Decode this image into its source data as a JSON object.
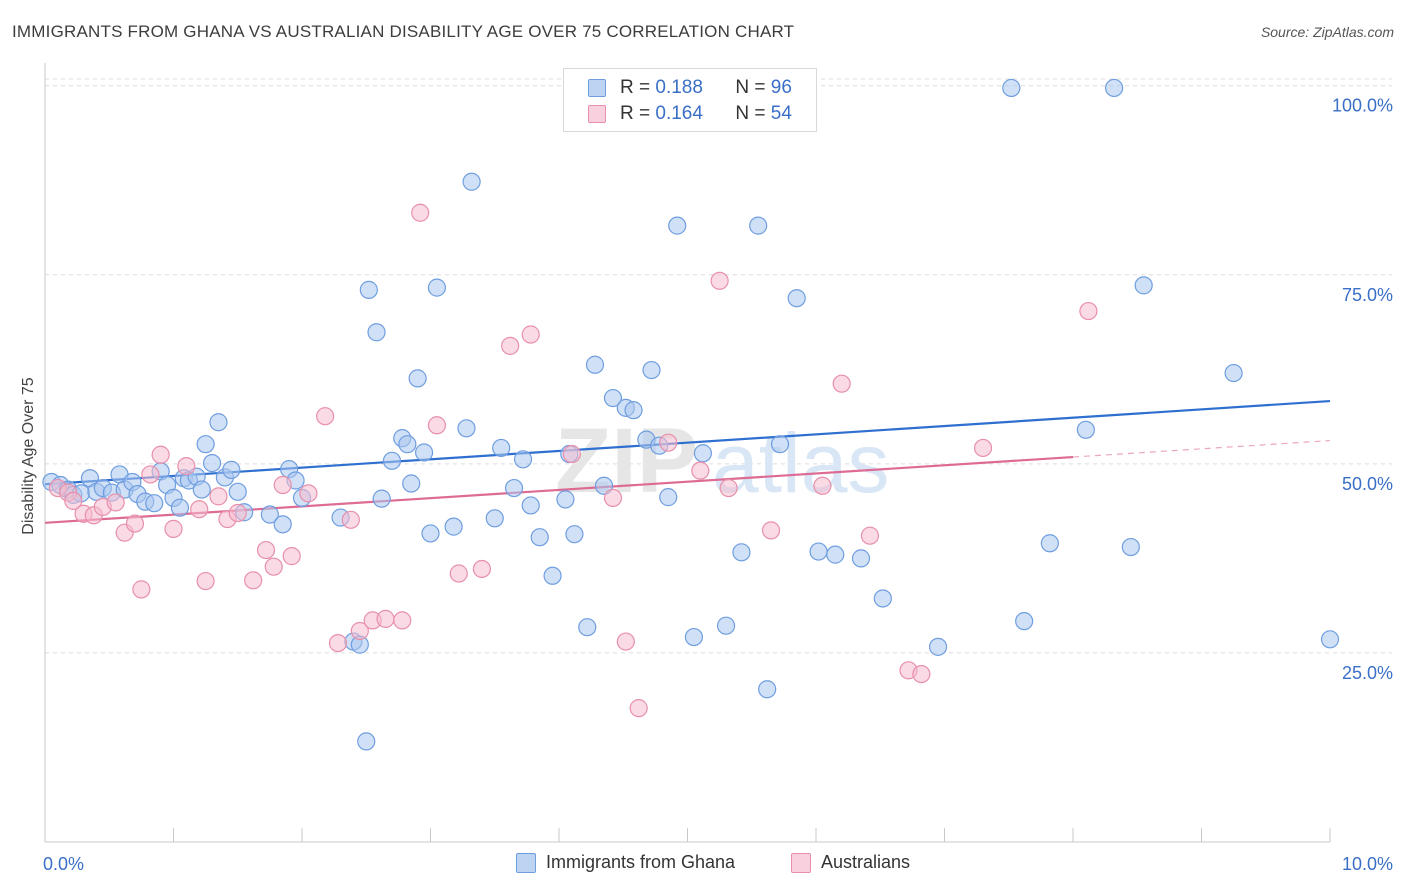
{
  "title": "IMMIGRANTS FROM GHANA VS AUSTRALIAN DISABILITY AGE OVER 75 CORRELATION CHART",
  "source": "Source: ZipAtlas.com",
  "watermark": {
    "zip": "ZIP",
    "atlas": "atlas"
  },
  "colors": {
    "blue_fill": "#a9c7ee",
    "blue_stroke": "#6f9ee0",
    "blue_line": "#2f6fd0",
    "pink_fill": "#f6bccd",
    "pink_stroke": "#e890ab",
    "pink_line": "#dd6b93",
    "axis_label": "#3a6fc7",
    "grid": "#dcdcdc"
  },
  "legend": {
    "rows": [
      {
        "r_label": "R = ",
        "r_value": "0.188",
        "n_label": "N = ",
        "n_value": "96"
      },
      {
        "r_label": "R = ",
        "r_value": "0.164",
        "n_label": "N = ",
        "n_value": "54"
      }
    ]
  },
  "bottom_legend": [
    "Immigrants from Ghana",
    "Australians"
  ],
  "chart_data": {
    "type": "scatter",
    "title": "IMMIGRANTS FROM GHANA VS AUSTRALIAN DISABILITY AGE OVER 75 CORRELATION CHART",
    "xlabel": "",
    "ylabel": "Disability Age Over 75",
    "xlim": [
      0,
      10
    ],
    "ylim": [
      0,
      103
    ],
    "x_tick_labels": [
      {
        "value": 0,
        "label": "0.0%"
      },
      {
        "value": 10,
        "label": "10.0%"
      }
    ],
    "y_tick_labels": [
      {
        "value": 25,
        "label": "25.0%"
      },
      {
        "value": 50,
        "label": "50.0%"
      },
      {
        "value": 75,
        "label": "75.0%"
      },
      {
        "value": 100,
        "label": "100.0%"
      }
    ],
    "grid": true,
    "legend_position": "top-center",
    "series": [
      {
        "name": "Immigrants from Ghana",
        "color": "#6f9ee0",
        "trendline": {
          "x": [
            0,
            10
          ],
          "y": [
            47.3,
            58.3
          ]
        },
        "points": [
          [
            0.05,
            47.6
          ],
          [
            0.12,
            47.2
          ],
          [
            0.18,
            46.6
          ],
          [
            0.22,
            45.9
          ],
          [
            0.28,
            46.1
          ],
          [
            0.35,
            48.1
          ],
          [
            0.4,
            46.3
          ],
          [
            0.45,
            46.8
          ],
          [
            0.52,
            46.2
          ],
          [
            0.58,
            48.6
          ],
          [
            0.62,
            46.6
          ],
          [
            0.68,
            47.6
          ],
          [
            0.72,
            46.0
          ],
          [
            0.78,
            45.0
          ],
          [
            0.85,
            44.8
          ],
          [
            0.9,
            49.0
          ],
          [
            0.95,
            47.2
          ],
          [
            1.0,
            45.5
          ],
          [
            1.05,
            44.2
          ],
          [
            1.08,
            48.1
          ],
          [
            1.12,
            47.8
          ],
          [
            1.18,
            48.3
          ],
          [
            1.22,
            46.6
          ],
          [
            1.25,
            52.6
          ],
          [
            1.3,
            50.1
          ],
          [
            1.35,
            55.5
          ],
          [
            1.4,
            48.2
          ],
          [
            1.45,
            49.2
          ],
          [
            1.5,
            46.3
          ],
          [
            1.55,
            43.6
          ],
          [
            1.75,
            43.3
          ],
          [
            1.85,
            42.0
          ],
          [
            1.9,
            49.3
          ],
          [
            1.95,
            47.8
          ],
          [
            2.0,
            45.5
          ],
          [
            2.3,
            42.9
          ],
          [
            2.4,
            26.5
          ],
          [
            2.45,
            26.1
          ],
          [
            2.5,
            13.3
          ],
          [
            2.52,
            73.0
          ],
          [
            2.58,
            67.4
          ],
          [
            2.62,
            45.4
          ],
          [
            2.7,
            50.4
          ],
          [
            2.78,
            53.4
          ],
          [
            2.82,
            52.6
          ],
          [
            2.85,
            47.4
          ],
          [
            2.9,
            61.3
          ],
          [
            2.95,
            51.5
          ],
          [
            3.0,
            40.8
          ],
          [
            3.05,
            73.3
          ],
          [
            3.18,
            41.7
          ],
          [
            3.28,
            54.7
          ],
          [
            3.32,
            87.3
          ],
          [
            3.5,
            42.8
          ],
          [
            3.55,
            52.1
          ],
          [
            3.65,
            46.8
          ],
          [
            3.72,
            50.6
          ],
          [
            3.78,
            44.5
          ],
          [
            3.85,
            40.3
          ],
          [
            3.95,
            35.2
          ],
          [
            4.05,
            45.3
          ],
          [
            4.08,
            51.3
          ],
          [
            4.12,
            40.7
          ],
          [
            4.22,
            28.4
          ],
          [
            4.28,
            63.1
          ],
          [
            4.35,
            47.1
          ],
          [
            4.42,
            58.7
          ],
          [
            4.52,
            57.4
          ],
          [
            4.58,
            57.1
          ],
          [
            4.68,
            53.2
          ],
          [
            4.72,
            62.4
          ],
          [
            4.78,
            52.4
          ],
          [
            4.85,
            45.6
          ],
          [
            4.92,
            81.5
          ],
          [
            5.05,
            27.1
          ],
          [
            5.12,
            51.4
          ],
          [
            5.3,
            28.6
          ],
          [
            5.42,
            38.3
          ],
          [
            5.55,
            81.5
          ],
          [
            5.62,
            20.2
          ],
          [
            5.72,
            52.6
          ],
          [
            5.85,
            71.9
          ],
          [
            6.02,
            38.4
          ],
          [
            6.15,
            38.0
          ],
          [
            6.35,
            37.5
          ],
          [
            6.52,
            32.2
          ],
          [
            6.95,
            25.8
          ],
          [
            7.52,
            99.7
          ],
          [
            7.62,
            29.2
          ],
          [
            7.82,
            39.5
          ],
          [
            8.1,
            54.5
          ],
          [
            8.32,
            99.7
          ],
          [
            8.45,
            39.0
          ],
          [
            8.55,
            73.6
          ],
          [
            9.25,
            62.0
          ],
          [
            10.0,
            26.8
          ]
        ]
      },
      {
        "name": "Australians",
        "color": "#e890ab",
        "trendline": {
          "x": [
            0,
            8.0
          ],
          "y": [
            42.2,
            50.9
          ]
        },
        "points": [
          [
            0.1,
            46.8
          ],
          [
            0.18,
            46.2
          ],
          [
            0.22,
            45.1
          ],
          [
            0.3,
            43.4
          ],
          [
            0.38,
            43.2
          ],
          [
            0.45,
            44.3
          ],
          [
            0.55,
            44.9
          ],
          [
            0.62,
            40.9
          ],
          [
            0.7,
            42.1
          ],
          [
            0.75,
            33.4
          ],
          [
            0.82,
            48.6
          ],
          [
            0.9,
            51.2
          ],
          [
            1.0,
            41.4
          ],
          [
            1.1,
            49.7
          ],
          [
            1.2,
            44.0
          ],
          [
            1.25,
            34.5
          ],
          [
            1.35,
            45.7
          ],
          [
            1.42,
            42.7
          ],
          [
            1.5,
            43.5
          ],
          [
            1.62,
            34.6
          ],
          [
            1.72,
            38.6
          ],
          [
            1.78,
            36.4
          ],
          [
            1.85,
            47.2
          ],
          [
            1.92,
            37.8
          ],
          [
            2.05,
            46.1
          ],
          [
            2.18,
            56.3
          ],
          [
            2.28,
            26.3
          ],
          [
            2.38,
            42.6
          ],
          [
            2.45,
            27.9
          ],
          [
            2.55,
            29.3
          ],
          [
            2.65,
            29.5
          ],
          [
            2.78,
            29.3
          ],
          [
            2.92,
            83.2
          ],
          [
            3.05,
            55.1
          ],
          [
            3.22,
            35.5
          ],
          [
            3.4,
            36.1
          ],
          [
            3.62,
            65.6
          ],
          [
            3.78,
            67.1
          ],
          [
            4.1,
            51.3
          ],
          [
            4.42,
            45.5
          ],
          [
            4.52,
            26.5
          ],
          [
            4.62,
            17.7
          ],
          [
            4.85,
            52.8
          ],
          [
            5.1,
            49.1
          ],
          [
            5.25,
            74.2
          ],
          [
            5.32,
            46.8
          ],
          [
            5.65,
            41.2
          ],
          [
            6.05,
            47.1
          ],
          [
            6.2,
            60.6
          ],
          [
            6.42,
            40.5
          ],
          [
            6.72,
            22.7
          ],
          [
            6.82,
            22.2
          ],
          [
            7.3,
            52.1
          ],
          [
            8.12,
            70.2
          ]
        ]
      }
    ]
  }
}
